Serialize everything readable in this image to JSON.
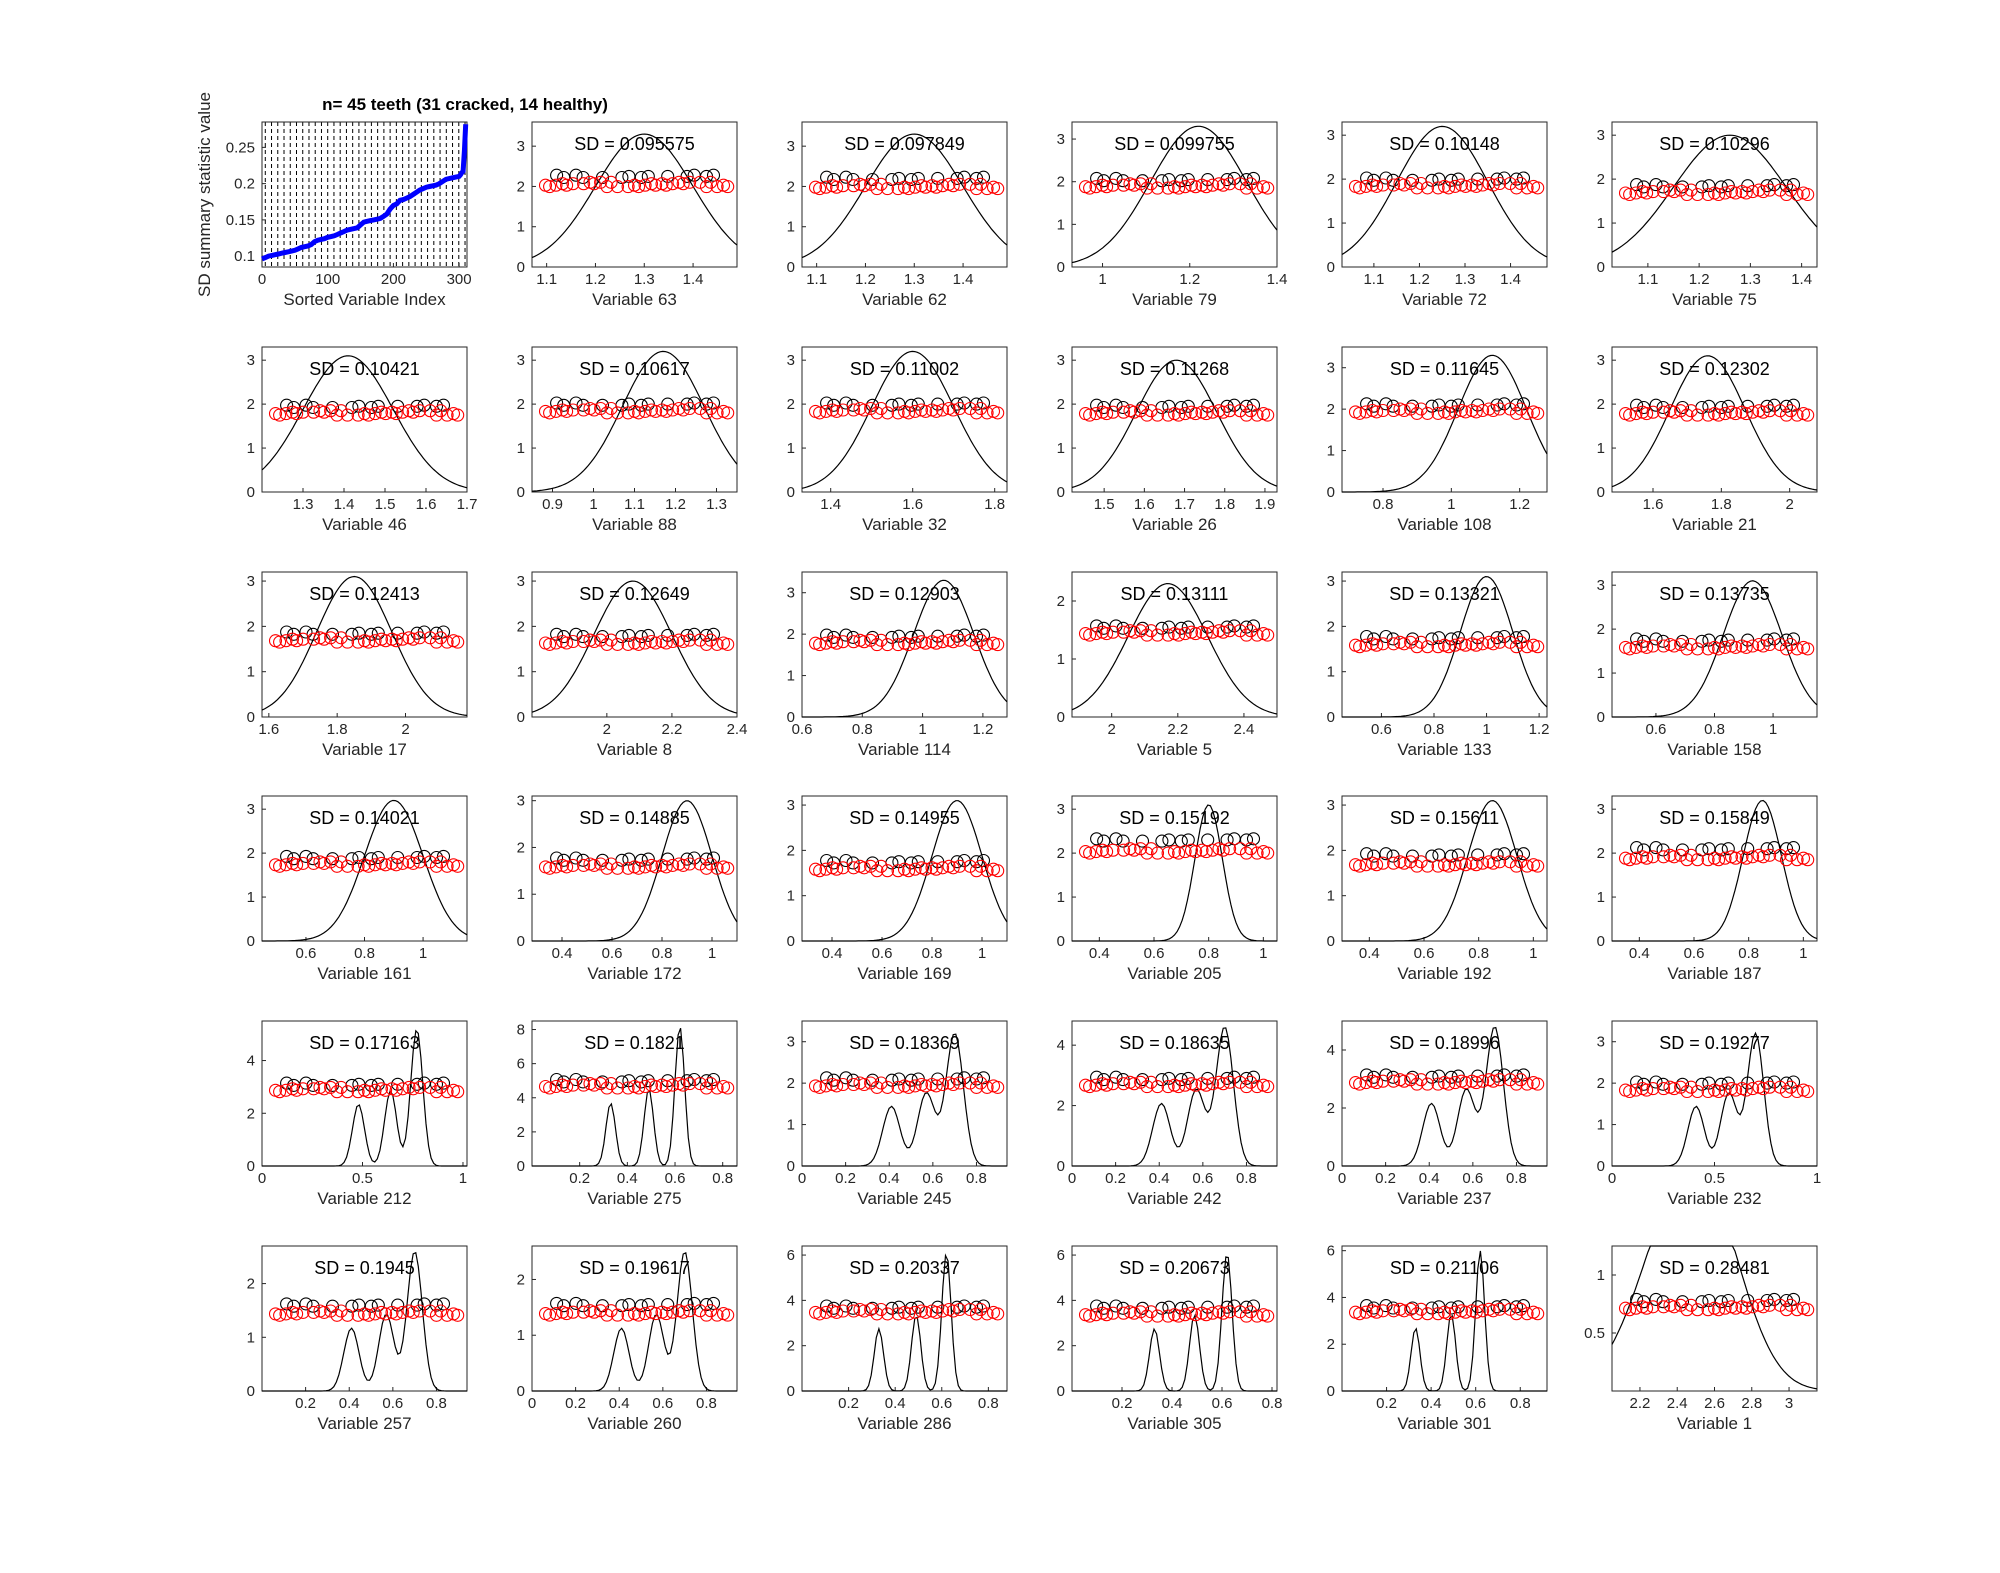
{
  "figure": {
    "title": "n= 45 teeth (31 cracked, 14 healthy)",
    "colors": {
      "background": "#ffffff",
      "axis": "#262626",
      "curve": "#000000",
      "cracked": "#ff0000",
      "healthy": "#000000",
      "summary_line": "#0000ff"
    }
  },
  "chart_data": [
    {
      "type": "line",
      "title": "n= 45 teeth (31 cracked, 14 healthy)",
      "xlabel": "Sorted Variable Index",
      "ylabel": "SD summary statistic value",
      "xlim": [
        0,
        312
      ],
      "ylim": [
        0.085,
        0.285
      ],
      "xticks": [
        0,
        100,
        200,
        300
      ],
      "yticks": [
        0.1,
        0.15,
        0.2,
        0.25
      ],
      "grid_note": "dashed vertical lines, one per sorted variable",
      "series": [
        {
          "x": [
            0,
            5,
            10,
            15,
            20,
            25,
            30,
            35,
            40,
            45,
            50,
            55,
            60,
            65,
            70,
            75,
            80,
            85,
            90,
            95,
            100,
            105,
            110,
            115,
            120,
            125,
            130,
            135,
            140,
            145,
            150,
            155,
            160,
            165,
            170,
            175,
            180,
            185,
            190,
            195,
            200,
            205,
            210,
            215,
            220,
            225,
            230,
            235,
            240,
            245,
            250,
            255,
            260,
            265,
            270,
            275,
            280,
            285,
            290,
            295,
            300,
            302,
            304,
            306,
            308,
            310
          ],
          "values": [
            0.096,
            0.098,
            0.1,
            0.101,
            0.102,
            0.103,
            0.104,
            0.105,
            0.106,
            0.107,
            0.108,
            0.11,
            0.112,
            0.113,
            0.114,
            0.116,
            0.12,
            0.122,
            0.123,
            0.124,
            0.126,
            0.127,
            0.128,
            0.13,
            0.132,
            0.134,
            0.136,
            0.137,
            0.138,
            0.139,
            0.143,
            0.147,
            0.148,
            0.149,
            0.15,
            0.151,
            0.152,
            0.155,
            0.158,
            0.165,
            0.17,
            0.172,
            0.177,
            0.178,
            0.18,
            0.182,
            0.185,
            0.188,
            0.191,
            0.193,
            0.195,
            0.196,
            0.197,
            0.198,
            0.2,
            0.203,
            0.206,
            0.207,
            0.208,
            0.209,
            0.21,
            0.212,
            0.215,
            0.217,
            0.245,
            0.282
          ]
        }
      ]
    },
    {
      "type": "scatter",
      "title": "SD = 0.095575",
      "xlabel": "Variable 63",
      "xlim": [
        1.07,
        1.49
      ],
      "ylim": [
        0,
        3.6
      ],
      "xticks": [
        1.1,
        1.2,
        1.3,
        1.4
      ],
      "yticks": [
        0,
        1,
        2,
        3
      ],
      "curve_center": 1.3,
      "curve_spread": 0.1,
      "curve_peak": 3.3,
      "healthy_y": 2.25,
      "cracked_y": 2.05
    },
    {
      "type": "scatter",
      "title": "SD = 0.097849",
      "xlabel": "Variable 62",
      "xlim": [
        1.07,
        1.49
      ],
      "ylim": [
        0,
        3.6
      ],
      "xticks": [
        1.1,
        1.2,
        1.3,
        1.4
      ],
      "yticks": [
        0,
        1,
        2,
        3
      ],
      "curve_center": 1.3,
      "curve_spread": 0.1,
      "curve_peak": 3.3,
      "healthy_y": 2.2,
      "cracked_y": 2.0
    },
    {
      "type": "scatter",
      "title": "SD = 0.099755",
      "xlabel": "Variable 79",
      "xlim": [
        0.93,
        1.4
      ],
      "ylim": [
        0,
        3.4
      ],
      "xticks": [
        1,
        1.2,
        1.4
      ],
      "yticks": [
        0,
        1,
        2,
        3
      ],
      "curve_center": 1.22,
      "curve_spread": 0.11,
      "curve_peak": 3.3,
      "healthy_y": 2.05,
      "cracked_y": 1.9
    },
    {
      "type": "scatter",
      "title": "SD = 0.10148",
      "xlabel": "Variable 72",
      "xlim": [
        1.03,
        1.48
      ],
      "ylim": [
        0,
        3.3
      ],
      "xticks": [
        1.1,
        1.2,
        1.3,
        1.4
      ],
      "yticks": [
        0,
        1,
        2,
        3
      ],
      "curve_center": 1.25,
      "curve_spread": 0.1,
      "curve_peak": 3.2,
      "healthy_y": 2.0,
      "cracked_y": 1.85
    },
    {
      "type": "scatter",
      "title": "SD = 0.10296",
      "xlabel": "Variable 75",
      "xlim": [
        1.03,
        1.43
      ],
      "ylim": [
        0,
        3.3
      ],
      "xticks": [
        1.1,
        1.2,
        1.3,
        1.4
      ],
      "yticks": [
        0,
        1,
        2,
        3
      ],
      "curve_center": 1.26,
      "curve_spread": 0.11,
      "curve_peak": 3.0,
      "healthy_y": 1.85,
      "cracked_y": 1.7
    },
    {
      "type": "scatter",
      "title": "SD = 0.10421",
      "xlabel": "Variable 46",
      "xlim": [
        1.2,
        1.7
      ],
      "ylim": [
        0,
        3.3
      ],
      "xticks": [
        1.3,
        1.4,
        1.5,
        1.6,
        1.7
      ],
      "yticks": [
        0,
        1,
        2,
        3
      ],
      "curve_center": 1.41,
      "curve_spread": 0.11,
      "curve_peak": 3.1,
      "healthy_y": 1.95,
      "cracked_y": 1.8
    },
    {
      "type": "scatter",
      "title": "SD = 0.10617",
      "xlabel": "Variable 88",
      "xlim": [
        0.85,
        1.35
      ],
      "ylim": [
        0,
        3.3
      ],
      "xticks": [
        0.9,
        1,
        1.1,
        1.2,
        1.3
      ],
      "yticks": [
        0,
        1,
        2,
        3
      ],
      "curve_center": 1.17,
      "curve_spread": 0.1,
      "curve_peak": 3.2,
      "healthy_y": 2.0,
      "cracked_y": 1.85
    },
    {
      "type": "scatter",
      "title": "SD = 0.11002",
      "xlabel": "Variable 32",
      "xlim": [
        1.33,
        1.83
      ],
      "ylim": [
        0,
        3.3
      ],
      "xticks": [
        1.4,
        1.6,
        1.8
      ],
      "yticks": [
        0,
        1,
        2,
        3
      ],
      "curve_center": 1.6,
      "curve_spread": 0.1,
      "curve_peak": 3.2,
      "healthy_y": 2.0,
      "cracked_y": 1.85
    },
    {
      "type": "scatter",
      "title": "SD = 0.11268",
      "xlabel": "Variable 26",
      "xlim": [
        1.42,
        1.93
      ],
      "ylim": [
        0,
        3.3
      ],
      "xticks": [
        1.5,
        1.6,
        1.7,
        1.8,
        1.9
      ],
      "yticks": [
        0,
        1,
        2,
        3
      ],
      "curve_center": 1.68,
      "curve_spread": 0.1,
      "curve_peak": 3.0,
      "healthy_y": 1.95,
      "cracked_y": 1.8
    },
    {
      "type": "scatter",
      "title": "SD = 0.11645",
      "xlabel": "Variable 108",
      "xlim": [
        0.68,
        1.28
      ],
      "ylim": [
        0,
        3.5
      ],
      "xticks": [
        0.8,
        1,
        1.2
      ],
      "yticks": [
        0,
        1,
        2,
        3
      ],
      "curve_center": 1.12,
      "curve_spread": 0.1,
      "curve_peak": 3.3,
      "healthy_y": 2.1,
      "cracked_y": 1.95
    },
    {
      "type": "scatter",
      "title": "SD = 0.12302",
      "xlabel": "Variable 21",
      "xlim": [
        1.48,
        2.08
      ],
      "ylim": [
        0,
        3.3
      ],
      "xticks": [
        1.6,
        1.8,
        2
      ],
      "yticks": [
        0,
        1,
        2,
        3
      ],
      "curve_center": 1.76,
      "curve_spread": 0.11,
      "curve_peak": 3.1,
      "healthy_y": 1.95,
      "cracked_y": 1.8
    },
    {
      "type": "scatter",
      "title": "SD = 0.12413",
      "xlabel": "Variable 17",
      "xlim": [
        1.58,
        2.18
      ],
      "ylim": [
        0,
        3.2
      ],
      "xticks": [
        1.6,
        1.8,
        2
      ],
      "yticks": [
        0,
        1,
        2,
        3
      ],
      "curve_center": 1.85,
      "curve_spread": 0.11,
      "curve_peak": 3.1,
      "healthy_y": 1.85,
      "cracked_y": 1.7
    },
    {
      "type": "scatter",
      "title": "SD = 0.12649",
      "xlabel": "Variable 8",
      "xlim": [
        1.77,
        2.4
      ],
      "ylim": [
        0,
        3.2
      ],
      "xticks": [
        2,
        2.2,
        2.4
      ],
      "yticks": [
        0,
        1,
        2,
        3
      ],
      "curve_center": 2.08,
      "curve_spread": 0.12,
      "curve_peak": 3.0,
      "healthy_y": 1.8,
      "cracked_y": 1.65
    },
    {
      "type": "scatter",
      "title": "SD = 0.12903",
      "xlabel": "Variable 114",
      "xlim": [
        0.6,
        1.28
      ],
      "ylim": [
        0,
        3.5
      ],
      "xticks": [
        0.6,
        0.8,
        1,
        1.2
      ],
      "yticks": [
        0,
        1,
        2,
        3
      ],
      "curve_center": 1.07,
      "curve_spread": 0.1,
      "curve_peak": 3.3,
      "healthy_y": 1.95,
      "cracked_y": 1.8
    },
    {
      "type": "scatter",
      "title": "SD = 0.13111",
      "xlabel": "Variable 5",
      "xlim": [
        1.88,
        2.5
      ],
      "ylim": [
        0,
        2.5
      ],
      "xticks": [
        2,
        2.2,
        2.4
      ],
      "yticks": [
        0,
        1,
        2
      ],
      "curve_center": 2.17,
      "curve_spread": 0.12,
      "curve_peak": 2.3,
      "healthy_y": 1.55,
      "cracked_y": 1.45
    },
    {
      "type": "scatter",
      "title": "SD = 0.13321",
      "xlabel": "Variable 133",
      "xlim": [
        0.45,
        1.23
      ],
      "ylim": [
        0,
        3.2
      ],
      "xticks": [
        0.6,
        0.8,
        1,
        1.2
      ],
      "yticks": [
        0,
        1,
        2,
        3
      ],
      "curve_center": 1.0,
      "curve_spread": 0.1,
      "curve_peak": 3.1,
      "healthy_y": 1.75,
      "cracked_y": 1.6
    },
    {
      "type": "scatter",
      "title": "SD = 0.13735",
      "xlabel": "Variable 158",
      "xlim": [
        0.45,
        1.15
      ],
      "ylim": [
        0,
        3.3
      ],
      "xticks": [
        0.6,
        0.8,
        1
      ],
      "yticks": [
        0,
        1,
        2,
        3
      ],
      "curve_center": 0.93,
      "curve_spread": 0.1,
      "curve_peak": 3.1,
      "healthy_y": 1.75,
      "cracked_y": 1.6
    },
    {
      "type": "scatter",
      "title": "SD = 0.14021",
      "xlabel": "Variable 161",
      "xlim": [
        0.45,
        1.15
      ],
      "ylim": [
        0,
        3.3
      ],
      "xticks": [
        0.6,
        0.8,
        1
      ],
      "yticks": [
        0,
        1,
        2,
        3
      ],
      "curve_center": 0.9,
      "curve_spread": 0.1,
      "curve_peak": 3.2,
      "healthy_y": 1.9,
      "cracked_y": 1.75
    },
    {
      "type": "scatter",
      "title": "SD = 0.14885",
      "xlabel": "Variable 172",
      "xlim": [
        0.28,
        1.1
      ],
      "ylim": [
        0,
        3.1
      ],
      "xticks": [
        0.4,
        0.6,
        0.8,
        1
      ],
      "yticks": [
        0,
        1,
        2,
        3
      ],
      "curve_center": 0.9,
      "curve_spread": 0.1,
      "curve_peak": 3.0,
      "healthy_y": 1.75,
      "cracked_y": 1.6
    },
    {
      "type": "scatter",
      "title": "SD = 0.14955",
      "xlabel": "Variable 169",
      "xlim": [
        0.28,
        1.1
      ],
      "ylim": [
        0,
        3.2
      ],
      "xticks": [
        0.4,
        0.6,
        0.8,
        1
      ],
      "yticks": [
        0,
        1,
        2,
        3
      ],
      "curve_center": 0.9,
      "curve_spread": 0.1,
      "curve_peak": 3.1,
      "healthy_y": 1.75,
      "cracked_y": 1.6
    },
    {
      "type": "scatter",
      "title": "SD = 0.15192",
      "xlabel": "Variable 205",
      "xlim": [
        0.3,
        1.05
      ],
      "ylim": [
        0,
        3.3
      ],
      "xticks": [
        0.4,
        0.6,
        0.8,
        1
      ],
      "yticks": [
        0,
        1,
        2,
        3
      ],
      "curve_center": 0.8,
      "curve_spread": 0.05,
      "curve_peak": 3.1,
      "healthy_y": 2.3,
      "cracked_y": 2.05
    },
    {
      "type": "scatter",
      "title": "SD = 0.15611",
      "xlabel": "Variable 192",
      "xlim": [
        0.3,
        1.05
      ],
      "ylim": [
        0,
        3.2
      ],
      "xticks": [
        0.4,
        0.6,
        0.8,
        1
      ],
      "yticks": [
        0,
        1,
        2,
        3
      ],
      "curve_center": 0.85,
      "curve_spread": 0.09,
      "curve_peak": 3.1,
      "healthy_y": 1.9,
      "cracked_y": 1.7
    },
    {
      "type": "scatter",
      "title": "SD = 0.15849",
      "xlabel": "Variable 187",
      "xlim": [
        0.3,
        1.05
      ],
      "ylim": [
        0,
        3.3
      ],
      "xticks": [
        0.4,
        0.6,
        0.8,
        1
      ],
      "yticks": [
        0,
        1,
        2,
        3
      ],
      "curve_center": 0.85,
      "curve_spread": 0.07,
      "curve_peak": 3.2,
      "healthy_y": 2.1,
      "cracked_y": 1.9
    },
    {
      "type": "scatter",
      "title": "SD = 0.17163",
      "xlabel": "Variable 212",
      "xlim": [
        0,
        1.02
      ],
      "ylim": [
        0,
        5.5
      ],
      "xticks": [
        0,
        0.5,
        1
      ],
      "yticks": [
        0,
        2,
        4
      ],
      "curve_center": 0.77,
      "curve_spread": 0.03,
      "curve_peak": 5.2,
      "healthy_y": 3.1,
      "cracked_y": 2.9
    },
    {
      "type": "scatter",
      "title": "SD = 0.1821",
      "xlabel": "Variable 275",
      "xlim": [
        0,
        0.86
      ],
      "ylim": [
        0,
        8.5
      ],
      "xticks": [
        0.2,
        0.4,
        0.6,
        0.8
      ],
      "yticks": [
        0,
        2,
        4,
        6,
        8
      ],
      "curve_center": 0.62,
      "curve_spread": 0.02,
      "curve_peak": 8.2,
      "healthy_y": 5.0,
      "cracked_y": 4.7
    },
    {
      "type": "scatter",
      "title": "SD = 0.18369",
      "xlabel": "Variable 245",
      "xlim": [
        0,
        0.94
      ],
      "ylim": [
        0,
        3.5
      ],
      "xticks": [
        0,
        0.2,
        0.4,
        0.6,
        0.8
      ],
      "yticks": [
        0,
        1,
        2,
        3
      ],
      "curve_center": 0.7,
      "curve_spread": 0.04,
      "curve_peak": 3.2,
      "healthy_y": 2.1,
      "cracked_y": 1.95
    },
    {
      "type": "scatter",
      "title": "SD = 0.18635",
      "xlabel": "Variable 242",
      "xlim": [
        0,
        0.94
      ],
      "ylim": [
        0,
        4.8
      ],
      "xticks": [
        0,
        0.2,
        0.4,
        0.6,
        0.8
      ],
      "yticks": [
        0,
        2,
        4
      ],
      "curve_center": 0.7,
      "curve_spread": 0.04,
      "curve_peak": 4.6,
      "healthy_y": 2.9,
      "cracked_y": 2.7
    },
    {
      "type": "scatter",
      "title": "SD = 0.18996",
      "xlabel": "Variable 237",
      "xlim": [
        0,
        0.94
      ],
      "ylim": [
        0,
        5.0
      ],
      "xticks": [
        0,
        0.2,
        0.4,
        0.6,
        0.8
      ],
      "yticks": [
        0,
        2,
        4
      ],
      "curve_center": 0.7,
      "curve_spread": 0.04,
      "curve_peak": 4.8,
      "healthy_y": 3.1,
      "cracked_y": 2.9
    },
    {
      "type": "scatter",
      "title": "SD = 0.19277",
      "xlabel": "Variable 232",
      "xlim": [
        0,
        1.0
      ],
      "ylim": [
        0,
        3.5
      ],
      "xticks": [
        0,
        0.5,
        1
      ],
      "yticks": [
        0,
        1,
        2,
        3
      ],
      "curve_center": 0.7,
      "curve_spread": 0.04,
      "curve_peak": 3.2,
      "healthy_y": 2.0,
      "cracked_y": 1.85
    },
    {
      "type": "scatter",
      "title": "SD = 0.1945",
      "xlabel": "Variable 257",
      "xlim": [
        0,
        0.94
      ],
      "ylim": [
        0,
        2.7
      ],
      "xticks": [
        0.2,
        0.4,
        0.6,
        0.8
      ],
      "yticks": [
        0,
        1,
        2
      ],
      "curve_center": 0.7,
      "curve_spread": 0.035,
      "curve_peak": 2.6,
      "healthy_y": 1.6,
      "cracked_y": 1.45
    },
    {
      "type": "scatter",
      "title": "SD = 0.19617",
      "xlabel": "Variable 260",
      "xlim": [
        0,
        0.94
      ],
      "ylim": [
        0,
        2.6
      ],
      "xticks": [
        0,
        0.2,
        0.4,
        0.6,
        0.8
      ],
      "yticks": [
        0,
        1,
        2
      ],
      "curve_center": 0.7,
      "curve_spread": 0.035,
      "curve_peak": 2.5,
      "healthy_y": 1.55,
      "cracked_y": 1.4
    },
    {
      "type": "scatter",
      "title": "SD = 0.20337",
      "xlabel": "Variable 286",
      "xlim": [
        0,
        0.88
      ],
      "ylim": [
        0,
        6.4
      ],
      "xticks": [
        0.2,
        0.4,
        0.6,
        0.8
      ],
      "yticks": [
        0,
        2,
        4,
        6
      ],
      "curve_center": 0.62,
      "curve_spread": 0.02,
      "curve_peak": 6.1,
      "healthy_y": 3.7,
      "cracked_y": 3.5
    },
    {
      "type": "scatter",
      "title": "SD = 0.20673",
      "xlabel": "Variable 305",
      "xlim": [
        0,
        0.82
      ],
      "ylim": [
        0,
        6.4
      ],
      "xticks": [
        0.2,
        0.4,
        0.6,
        0.8
      ],
      "yticks": [
        0,
        2,
        4,
        6
      ],
      "curve_center": 0.62,
      "curve_spread": 0.02,
      "curve_peak": 6.1,
      "healthy_y": 3.7,
      "cracked_y": 3.4
    },
    {
      "type": "scatter",
      "title": "SD = 0.21106",
      "xlabel": "Variable 301",
      "xlim": [
        0,
        0.92
      ],
      "ylim": [
        0,
        6.2
      ],
      "xticks": [
        0.2,
        0.4,
        0.6,
        0.8
      ],
      "yticks": [
        0,
        2,
        4,
        6
      ],
      "curve_center": 0.62,
      "curve_spread": 0.02,
      "curve_peak": 6.0,
      "healthy_y": 3.6,
      "cracked_y": 3.4
    },
    {
      "type": "scatter",
      "title": "SD = 0.28481",
      "xlabel": "Variable 1",
      "xlim": [
        2.05,
        3.15
      ],
      "ylim": [
        0,
        1.25
      ],
      "xticks": [
        2.2,
        2.4,
        2.6,
        2.8,
        3
      ],
      "yticks": [
        0.5,
        1
      ],
      "curve_center": 2.57,
      "curve_spread": 0.2,
      "curve_peak": 1.15,
      "healthy_y": 0.78,
      "cracked_y": 0.72
    }
  ]
}
